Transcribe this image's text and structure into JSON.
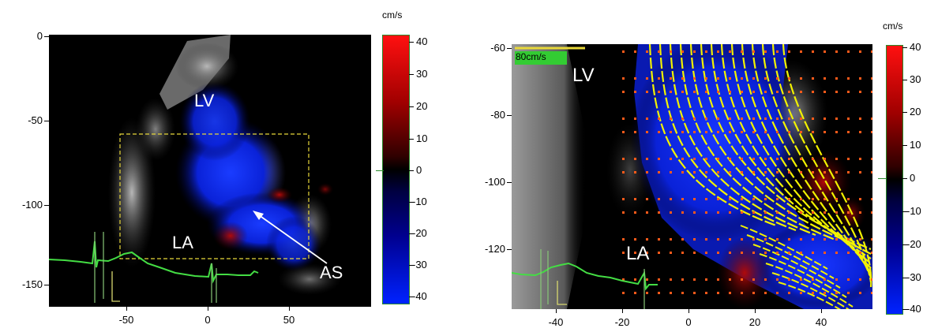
{
  "left_panel": {
    "unit_label": "cm/s",
    "labels": {
      "lv": "LV",
      "la": "LA",
      "as": "AS"
    },
    "y_ticks": [
      "0",
      "-50",
      "-100",
      "-150"
    ],
    "x_ticks": [
      "-50",
      "0",
      "50"
    ],
    "colorbar_ticks": [
      "40",
      "30",
      "20",
      "10",
      "0",
      "-10",
      "-20",
      "-30",
      "-40"
    ]
  },
  "right_panel": {
    "unit_label": "cm/s",
    "scale_label": "80cm/s",
    "labels": {
      "lv": "LV",
      "la": "LA"
    },
    "y_ticks": [
      "-60",
      "-80",
      "-100",
      "-120"
    ],
    "x_ticks": [
      "-40",
      "-20",
      "0",
      "20",
      "40"
    ],
    "colorbar_ticks": [
      "40",
      "30",
      "20",
      "10",
      "0",
      "-10",
      "-20",
      "-30",
      "-40"
    ]
  },
  "colors": {
    "positive": "#ff1a00",
    "negative": "#0022ff",
    "ecg": "#44dd44",
    "roi": "#e8d83a",
    "streamline": "#f2f200",
    "vector_tip": "#ff5a1a"
  }
}
